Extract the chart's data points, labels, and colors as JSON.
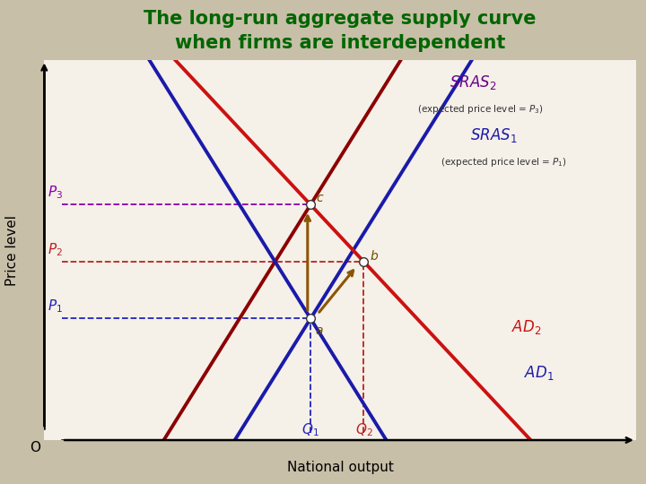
{
  "title": "The long-run aggregate supply curve\nwhen firms are interdependent",
  "title_color": "#006600",
  "title_fontsize": 15,
  "bg_color": "#c8bfa8",
  "plot_bg": "#f5f0e8",
  "xlabel": "National output",
  "ylabel": "Price level",
  "xlim": [
    0,
    10
  ],
  "ylim": [
    0,
    10
  ],
  "Q1": 4.5,
  "Q2": 5.4,
  "P1": 3.2,
  "P2": 4.7,
  "P3": 6.2,
  "SRAS1_color": "#1a1aaa",
  "SRAS2_color": "#8B0000",
  "SRAS2_label_color": "#660088",
  "AD1_color": "#1a1aaa",
  "AD2_color": "#cc1111",
  "dashed_color_blue": "#2222bb",
  "dashed_color_red": "#bb2222",
  "dashed_color_purple": "#8800aa",
  "annotation_color": "#8B5500",
  "slope_sras": 2.5,
  "slope_ad": -2.5
}
